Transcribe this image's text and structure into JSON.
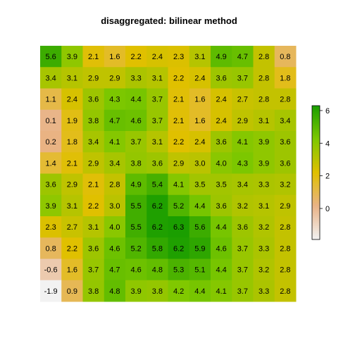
{
  "chart_data": {
    "type": "heatmap",
    "title": "disaggregated: bilinear method",
    "xlabel": "",
    "ylabel": "",
    "grid": false,
    "legend": "right",
    "value_range": [
      -1.9,
      6.3
    ],
    "colorbar_ticks": [
      0,
      2,
      4,
      6
    ],
    "colorbar_tick_labels": [
      "0",
      "2",
      "4",
      "6"
    ],
    "color_scale": [
      "#f2f2f2",
      "#e9b386",
      "#e0c000",
      "#7ec800",
      "#1a9e00"
    ],
    "rows": [
      [
        "5.6",
        "3.9",
        "2.1",
        "1.6",
        "2.2",
        "2.4",
        "2.3",
        "3.1",
        "4.9",
        "4.7",
        "2.8",
        "0.8"
      ],
      [
        "3.4",
        "3.1",
        "2.9",
        "2.9",
        "3.3",
        "3.1",
        "2.2",
        "2.4",
        "3.6",
        "3.7",
        "2.8",
        "1.8"
      ],
      [
        "1.1",
        "2.4",
        "3.6",
        "4.3",
        "4.4",
        "3.7",
        "2.1",
        "1.6",
        "2.4",
        "2.7",
        "2.8",
        "2.8"
      ],
      [
        "0.1",
        "1.9",
        "3.8",
        "4.7",
        "4.6",
        "3.7",
        "2.1",
        "1.6",
        "2.4",
        "2.9",
        "3.1",
        "3.4"
      ],
      [
        "0.2",
        "1.8",
        "3.4",
        "4.1",
        "3.7",
        "3.1",
        "2.2",
        "2.4",
        "3.6",
        "4.1",
        "3.9",
        "3.6"
      ],
      [
        "1.4",
        "2.1",
        "2.9",
        "3.4",
        "3.8",
        "3.6",
        "2.9",
        "3.0",
        "4.0",
        "4.3",
        "3.9",
        "3.6"
      ],
      [
        "3.6",
        "2.9",
        "2.1",
        "2.8",
        "4.9",
        "5.4",
        "4.1",
        "3.5",
        "3.5",
        "3.4",
        "3.3",
        "3.2"
      ],
      [
        "3.9",
        "3.1",
        "2.2",
        "3.0",
        "5.5",
        "6.2",
        "5.2",
        "4.4",
        "3.6",
        "3.2",
        "3.1",
        "2.9"
      ],
      [
        "2.3",
        "2.7",
        "3.1",
        "4.0",
        "5.5",
        "6.2",
        "6.3",
        "5.6",
        "4.4",
        "3.6",
        "3.2",
        "2.8"
      ],
      [
        "0.8",
        "2.2",
        "3.6",
        "4.6",
        "5.2",
        "5.8",
        "6.2",
        "5.9",
        "4.6",
        "3.7",
        "3.3",
        "2.8"
      ],
      [
        "-0.6",
        "1.6",
        "3.7",
        "4.7",
        "4.6",
        "4.8",
        "5.3",
        "5.1",
        "4.4",
        "3.7",
        "3.2",
        "2.8"
      ],
      [
        "-1.9",
        "0.9",
        "3.8",
        "4.8",
        "3.9",
        "3.8",
        "4.2",
        "4.4",
        "4.1",
        "3.7",
        "3.3",
        "2.8"
      ]
    ]
  }
}
